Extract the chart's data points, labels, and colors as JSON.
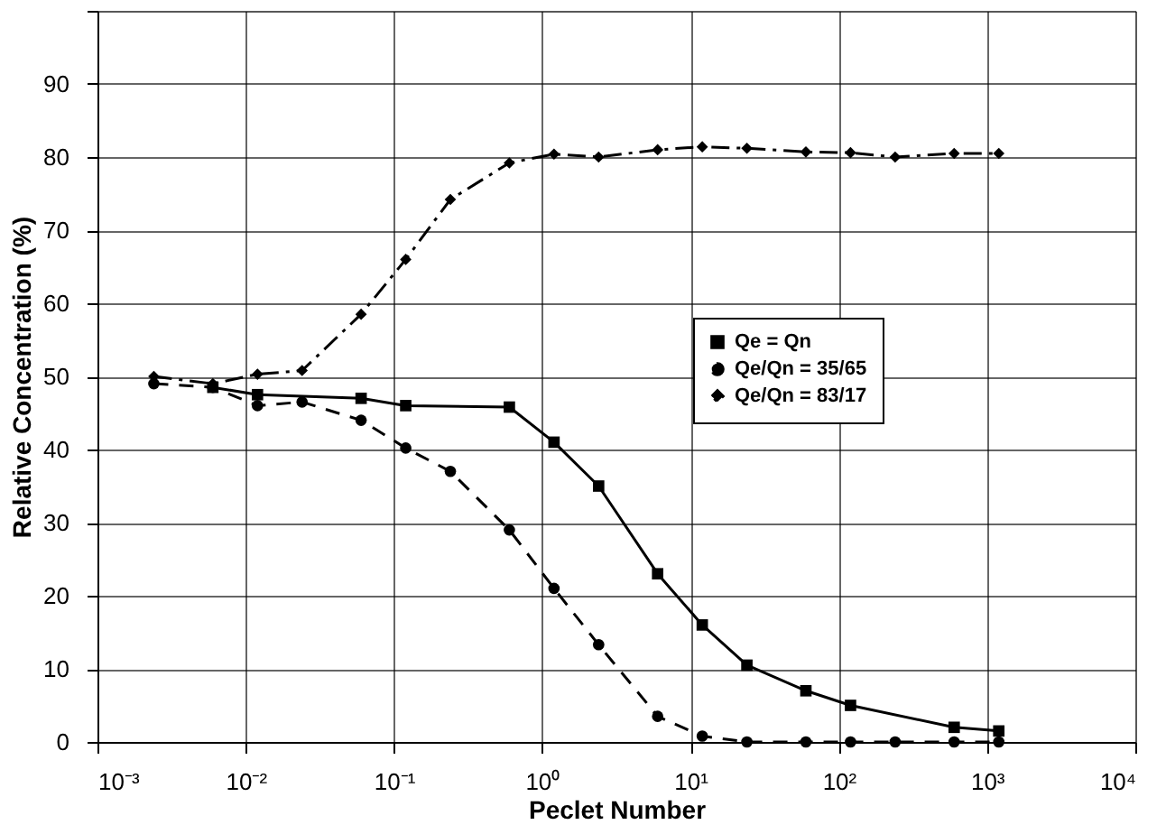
{
  "chart_data": {
    "type": "line",
    "xlabel": "Peclet Number",
    "ylabel": "Relative Concentration (%)",
    "log": "x",
    "grid": true,
    "legend": "right",
    "xlim": [
      0.001,
      10000
    ],
    "xticks": [
      {
        "value": 0.001,
        "label": "10⁻³"
      },
      {
        "value": 0.01,
        "label": "10⁻²"
      },
      {
        "value": 0.1,
        "label": "10⁻¹"
      },
      {
        "value": 1,
        "label": "10⁰"
      },
      {
        "value": 10,
        "label": "10¹"
      },
      {
        "value": 100,
        "label": "10²"
      },
      {
        "value": 1000,
        "label": "10³"
      },
      {
        "value": 10000,
        "label": "10⁴"
      }
    ],
    "ylim": [
      0,
      100
    ],
    "yticks": [
      0,
      10,
      20,
      30,
      40,
      50,
      60,
      70,
      80,
      90,
      {
        "value": 100,
        "label": null
      }
    ],
    "series": [
      {
        "name": "Qe = Qn",
        "color": "#000000",
        "marker": "square",
        "line_style": "solid",
        "x": [
          0.006,
          0.012,
          0.06,
          0.12,
          0.6,
          1.2,
          2.4,
          6,
          12,
          24,
          60,
          120,
          600,
          1200
        ],
        "values": [
          48.5,
          47.5,
          47,
          46,
          45.8,
          41,
          35,
          23,
          16,
          10.5,
          7,
          5,
          2,
          1.5
        ]
      },
      {
        "name": "Qe/Qn = 35/65",
        "color": "#000000",
        "marker": "circle",
        "line_style": "dashed",
        "x": [
          0.0024,
          0.006,
          0.012,
          0.024,
          0.06,
          0.12,
          0.24,
          0.6,
          1.2,
          2.4,
          6,
          12,
          24,
          60,
          120,
          240,
          600,
          1200
        ],
        "values": [
          49,
          48.5,
          46,
          46.5,
          44,
          40.2,
          37,
          29,
          21,
          13.3,
          3.5,
          0.8,
          0,
          0,
          0,
          0,
          0,
          0
        ]
      },
      {
        "name": "Qe/Qn = 83/17",
        "color": "#000000",
        "marker": "diamond",
        "line_style": "dashdot",
        "x": [
          0.0024,
          0.006,
          0.012,
          0.024,
          0.06,
          0.12,
          0.24,
          0.6,
          1.2,
          2.4,
          6,
          12,
          24,
          60,
          120,
          240,
          600,
          1200
        ],
        "values": [
          50,
          49,
          50.3,
          50.8,
          58.5,
          66,
          74.2,
          79.2,
          80.4,
          80,
          81,
          81.4,
          81.2,
          80.7,
          80.6,
          80,
          80.5,
          80.5
        ]
      }
    ]
  }
}
